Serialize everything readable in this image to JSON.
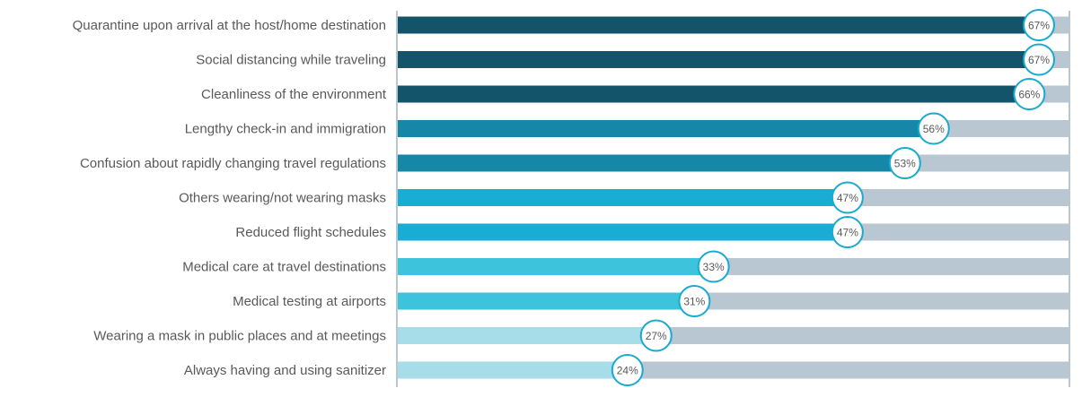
{
  "chart_data": {
    "type": "bar",
    "orientation": "horizontal",
    "categories": [
      "Quarantine upon arrival at the host/home destination",
      "Social distancing while traveling",
      "Cleanliness of the environment",
      "Lengthy check-in and immigration",
      "Confusion about rapidly changing travel regulations",
      "Others wearing/not wearing masks",
      "Reduced flight schedules",
      "Medical care at travel destinations",
      "Medical testing at airports",
      "Wearing a mask in public places and at meetings",
      "Always having and using sanitizer"
    ],
    "values": [
      67,
      67,
      66,
      56,
      53,
      47,
      47,
      33,
      31,
      27,
      24
    ],
    "value_labels": [
      "67%",
      "67%",
      "66%",
      "56%",
      "53%",
      "47%",
      "47%",
      "33%",
      "31%",
      "27%",
      "24%"
    ],
    "xlim": [
      0,
      100
    ],
    "title": "",
    "xlabel": "",
    "ylabel": "",
    "grid": false,
    "legend": "none",
    "colors": {
      "bar_fills": [
        "#14546b",
        "#14546b",
        "#14546b",
        "#1787a8",
        "#1787a8",
        "#19add3",
        "#19add3",
        "#3dc4dc",
        "#3dc4dc",
        "#a6dde8",
        "#a6dde8"
      ],
      "track": "#b9c7d2",
      "label_circle_stroke": "#19aacf",
      "label_circle_fill": "#ffffff",
      "axis_lines": "#b9c7d2",
      "text": "#595959"
    }
  }
}
